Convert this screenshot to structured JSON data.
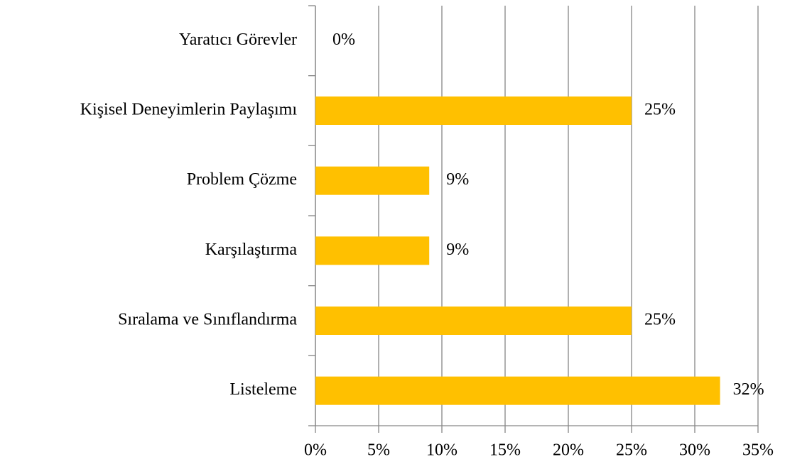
{
  "chart_data": {
    "type": "hbar",
    "categories": [
      "Yaratıcı Görevler",
      "Kişisel Deneyimlerin Paylaşımı",
      "Problem Çözme",
      "Karşılaştırma",
      "Sıralama ve Sınıflandırma",
      "Listeleme"
    ],
    "values": [
      0,
      25,
      9,
      9,
      25,
      32
    ],
    "value_labels": [
      "0%",
      "25%",
      "9%",
      "9%",
      "25%",
      "32%"
    ],
    "color": "#ffc000",
    "xlim": [
      0,
      35
    ],
    "xticks": [
      {
        "value": 0,
        "label": "0%"
      },
      {
        "value": 5,
        "label": "5%"
      },
      {
        "value": 10,
        "label": "10%"
      },
      {
        "value": 15,
        "label": "15%"
      },
      {
        "value": 20,
        "label": "20%"
      },
      {
        "value": 25,
        "label": "25%"
      },
      {
        "value": 30,
        "label": "30%"
      },
      {
        "value": 35,
        "label": "35%"
      }
    ],
    "grid": true
  }
}
